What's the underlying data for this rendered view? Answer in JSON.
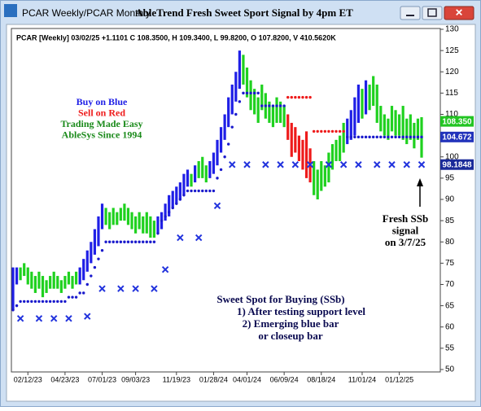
{
  "window": {
    "title_left": "PCAR Weekly/PCAR Monthly",
    "title": "AbleTrend Fresh Sweet Sport Signal by 4pm ET"
  },
  "chart_data": {
    "type": "ohlc",
    "info": "PCAR [Weekly] 03/02/25 +1.1101 C 108.3500, H 109.3400, L 99.8200, O 107.8200, V 410.5620K",
    "ylim": [
      50,
      130
    ],
    "yticks": [
      50,
      55,
      60,
      65,
      70,
      75,
      80,
      85,
      90,
      95,
      100,
      105,
      110,
      115,
      120,
      125,
      130
    ],
    "xticks": [
      {
        "value": 4,
        "label": "02/12/23"
      },
      {
        "value": 14,
        "label": "04/23/23"
      },
      {
        "value": 24,
        "label": "07/01/23"
      },
      {
        "value": 33,
        "label": "09/03/23"
      },
      {
        "value": 44,
        "label": "11/19/23"
      },
      {
        "value": 54,
        "label": "01/28/24"
      },
      {
        "value": 63,
        "label": "04/01/24"
      },
      {
        "value": 73,
        "label": "06/09/24"
      },
      {
        "value": 83,
        "label": "08/18/24"
      },
      {
        "value": 94,
        "label": "11/01/24"
      },
      {
        "value": 104,
        "label": "01/12/25"
      }
    ],
    "palette": {
      "b": "#1f1fe6",
      "g": "#1fd11f",
      "r": "#ee1b1b"
    },
    "high": [
      74,
      74,
      74,
      75,
      74,
      73,
      72,
      73,
      72,
      71,
      72,
      73,
      72,
      71,
      72,
      73,
      72,
      73,
      74,
      76,
      78,
      80,
      83,
      86,
      89,
      88,
      87,
      88,
      87,
      88,
      89,
      88,
      87,
      86,
      87,
      86,
      87,
      86,
      85,
      86,
      87,
      89,
      91,
      92,
      93,
      94,
      96,
      97,
      96,
      98,
      99,
      100,
      98,
      99,
      101,
      104,
      107,
      110,
      114,
      117,
      120,
      125,
      124,
      121,
      118,
      116,
      114,
      117,
      115,
      113,
      112,
      114,
      113,
      112,
      110,
      108,
      107,
      105,
      104,
      106,
      102,
      99,
      97,
      99,
      98,
      101,
      103,
      104,
      105,
      108,
      109,
      111,
      114,
      117,
      116,
      118,
      117,
      119,
      117,
      112,
      110,
      109,
      112,
      111,
      110,
      112,
      109,
      110,
      108,
      109,
      109.34
    ],
    "low": [
      64,
      70,
      71,
      72,
      70,
      69,
      68,
      69,
      67,
      68,
      69,
      69,
      69,
      68,
      69,
      70,
      69,
      70,
      70,
      71,
      73,
      75,
      77,
      79,
      83,
      84,
      83,
      84,
      84,
      85,
      85,
      84,
      83,
      82,
      83,
      82,
      82,
      81,
      81,
      82,
      83,
      85,
      86,
      88,
      89,
      90,
      91,
      93,
      93,
      94,
      95,
      95,
      94,
      95,
      96,
      98,
      101,
      104,
      107,
      110,
      113,
      116,
      117,
      114,
      111,
      110,
      108,
      111,
      109,
      108,
      107,
      108,
      108,
      107,
      104,
      100,
      101,
      99,
      97,
      95,
      94,
      91,
      90,
      92,
      93,
      94,
      97,
      99,
      99,
      101,
      103,
      104,
      105,
      108,
      109,
      110,
      111,
      112,
      108,
      106,
      105,
      104,
      106,
      105,
      105,
      104,
      103,
      104,
      102,
      104,
      99.82
    ],
    "bar_colors": [
      "b",
      "b",
      "g",
      "g",
      "g",
      "g",
      "g",
      "g",
      "g",
      "g",
      "g",
      "g",
      "g",
      "g",
      "g",
      "g",
      "g",
      "g",
      "b",
      "b",
      "b",
      "b",
      "b",
      "b",
      "b",
      "g",
      "g",
      "g",
      "g",
      "g",
      "g",
      "g",
      "g",
      "g",
      "g",
      "g",
      "g",
      "g",
      "g",
      "b",
      "b",
      "b",
      "b",
      "b",
      "b",
      "b",
      "b",
      "b",
      "g",
      "b",
      "g",
      "g",
      "g",
      "b",
      "b",
      "b",
      "b",
      "b",
      "b",
      "b",
      "b",
      "b",
      "g",
      "g",
      "g",
      "g",
      "g",
      "g",
      "g",
      "g",
      "g",
      "g",
      "g",
      "g",
      "r",
      "r",
      "r",
      "r",
      "r",
      "r",
      "r",
      "g",
      "g",
      "g",
      "g",
      "g",
      "g",
      "g",
      "g",
      "g",
      "b",
      "b",
      "b",
      "b",
      "g",
      "b",
      "g",
      "g",
      "g",
      "g",
      "g",
      "g",
      "g",
      "g",
      "g",
      "g",
      "g",
      "g",
      "g",
      "g",
      "g"
    ],
    "stop_dots": {
      "color": "#1a1acc",
      "values": [
        64,
        65,
        66,
        66,
        66,
        66,
        66,
        66,
        66,
        66,
        66,
        66,
        66,
        66,
        66,
        67,
        67,
        67,
        68,
        68,
        70,
        72,
        74,
        76,
        78,
        80,
        80,
        80,
        80,
        80,
        80,
        80,
        80,
        80,
        80,
        80,
        80,
        80,
        80,
        82,
        85,
        86,
        87,
        88,
        89,
        90,
        91,
        92,
        92,
        92,
        92,
        92,
        92,
        92,
        92,
        95,
        97,
        100,
        103,
        107,
        110,
        113,
        115,
        115,
        115,
        115,
        115,
        112,
        112,
        112,
        112,
        112,
        112,
        112,
        null,
        null,
        null,
        null,
        null,
        null,
        null,
        null,
        null,
        null,
        null,
        null,
        null,
        null,
        null,
        null,
        104.67,
        104.67,
        104.67,
        104.67,
        104.67,
        104.67,
        104.67,
        104.67,
        104.67,
        104.67,
        104.67,
        104.67,
        104.67,
        104.67,
        104.67,
        104.67,
        104.67,
        104.67,
        104.67,
        104.67,
        104.67
      ]
    },
    "short_stops": {
      "color": "#ee1b1b",
      "values": [
        null,
        null,
        null,
        null,
        null,
        null,
        null,
        null,
        null,
        null,
        null,
        null,
        null,
        null,
        null,
        null,
        null,
        null,
        null,
        null,
        null,
        null,
        null,
        null,
        null,
        null,
        null,
        null,
        null,
        null,
        null,
        null,
        null,
        null,
        null,
        null,
        null,
        null,
        null,
        null,
        null,
        null,
        null,
        null,
        null,
        null,
        null,
        null,
        null,
        null,
        null,
        null,
        null,
        null,
        null,
        null,
        null,
        null,
        null,
        null,
        null,
        null,
        null,
        null,
        null,
        null,
        null,
        null,
        null,
        null,
        null,
        null,
        null,
        null,
        114,
        114,
        114,
        114,
        114,
        114,
        114,
        106,
        106,
        106,
        106,
        106,
        106,
        106,
        106,
        106,
        null,
        null,
        null,
        null,
        null,
        null,
        null,
        null,
        null,
        null,
        null,
        null,
        null,
        null,
        null,
        null,
        null,
        null,
        null,
        null,
        null
      ]
    },
    "x_markers": {
      "color": "#2233dd",
      "index": [
        2,
        7,
        11,
        15,
        20,
        24,
        29,
        33,
        38,
        41,
        45,
        50,
        55,
        59,
        63,
        68,
        72,
        76,
        80,
        85,
        89,
        93,
        98,
        102,
        106,
        110
      ],
      "values": [
        62,
        62,
        62,
        62,
        62.5,
        69,
        69,
        69,
        69,
        73.5,
        81,
        81,
        88.5,
        98.18,
        98.18,
        98.18,
        98.18,
        98.18,
        98.18,
        98.18,
        98.18,
        98.18,
        98.18,
        98.18,
        98.18,
        98.18
      ]
    },
    "price_tags": [
      {
        "value": 108.35,
        "label": "108.350",
        "color": "#22c422"
      },
      {
        "value": 104.672,
        "label": "104.672",
        "color": "#2233bb"
      },
      {
        "value": 98.1848,
        "label": "98.1848",
        "color": "#1a2a99"
      }
    ],
    "legend_lines": [
      {
        "text": "Buy on Blue",
        "color": "#1f1fe6"
      },
      {
        "text": "Sell on Red",
        "color": "#ee1b1b"
      },
      {
        "text": "Trading Made Easy",
        "color": "#1a8a1a"
      },
      {
        "text": "AbleSys Since 1994",
        "color": "#1a8a1a"
      }
    ],
    "signal_note": [
      "Fresh SSb",
      "signal",
      "on 3/7/25"
    ],
    "ssb_note": [
      "Sweet Spot for Buying (SSb)",
      "1) After testing support level",
      "2) Emerging blue bar",
      "or closeup bar"
    ]
  }
}
